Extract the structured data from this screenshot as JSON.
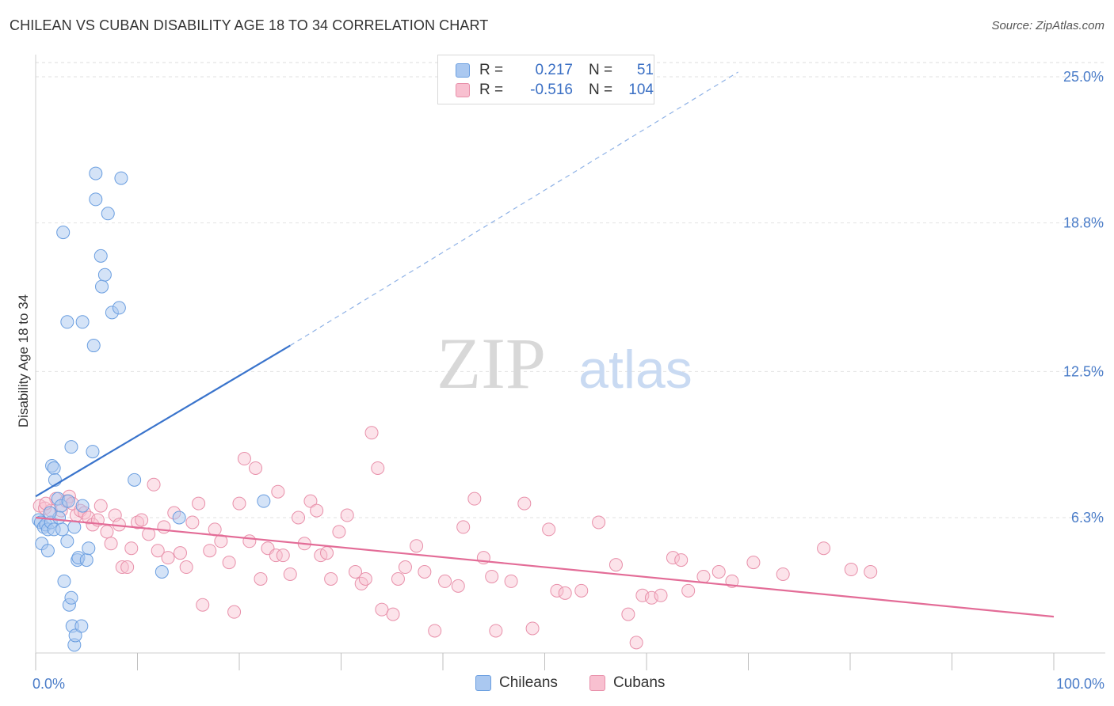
{
  "title": "CHILEAN VS CUBAN DISABILITY AGE 18 TO 34 CORRELATION CHART",
  "source": "Source: ZipAtlas.com",
  "watermark": {
    "zip": "ZIP",
    "atlas": "atlas"
  },
  "legend": {
    "rows": [
      {
        "r_label": "R =",
        "r_value": "0.217",
        "n_label": "N =",
        "n_value": "51",
        "color": "#aac8f0",
        "border": "#6a9ee0"
      },
      {
        "r_label": "R =",
        "r_value": "-0.516",
        "n_label": "N =",
        "n_value": "104",
        "color": "#f8c0d0",
        "border": "#e890aa"
      }
    ]
  },
  "bottom_legend": [
    {
      "label": "Chileans",
      "color": "#aac8f0",
      "border": "#6a9ee0"
    },
    {
      "label": "Cubans",
      "color": "#f8c0d0",
      "border": "#e890aa"
    }
  ],
  "chart_data": {
    "type": "scatter",
    "title": "CHILEAN VS CUBAN DISABILITY AGE 18 TO 34 CORRELATION CHART",
    "xlabel": "",
    "ylabel": "Disability Age 18 to 34",
    "xlim": [
      0,
      100
    ],
    "ylim": [
      0,
      26
    ],
    "x_tick_labels": [
      "0.0%",
      "100.0%"
    ],
    "y_ticks": [
      6.3,
      12.5,
      18.8,
      25.0
    ],
    "y_tick_labels": [
      "6.3%",
      "12.5%",
      "18.8%",
      "25.0%"
    ],
    "grid": true,
    "legend_position": "top-center",
    "series": [
      {
        "name": "Chileans",
        "color": "#6a9ee0",
        "fill": "#aac8f0",
        "trend": {
          "x0": 0,
          "y0": 7.2,
          "x1": 25,
          "y1": 13.6,
          "dash_to_x": 69,
          "dash_to_y": 25.2
        },
        "points": [
          [
            0.3,
            6.2
          ],
          [
            0.5,
            6.1
          ],
          [
            0.8,
            5.9
          ],
          [
            1.0,
            6.0
          ],
          [
            1.2,
            5.8
          ],
          [
            1.5,
            6.1
          ],
          [
            1.8,
            5.8
          ],
          [
            0.6,
            5.2
          ],
          [
            1.2,
            4.9
          ],
          [
            1.6,
            8.5
          ],
          [
            1.8,
            8.4
          ],
          [
            1.9,
            7.9
          ],
          [
            2.2,
            7.1
          ],
          [
            2.5,
            6.8
          ],
          [
            2.6,
            5.8
          ],
          [
            3.2,
            7.0
          ],
          [
            2.8,
            3.6
          ],
          [
            3.1,
            5.3
          ],
          [
            3.3,
            2.6
          ],
          [
            3.5,
            9.3
          ],
          [
            3.5,
            2.9
          ],
          [
            3.6,
            1.7
          ],
          [
            3.8,
            0.9
          ],
          [
            3.9,
            1.3
          ],
          [
            3.8,
            5.9
          ],
          [
            4.1,
            4.5
          ],
          [
            4.2,
            4.6
          ],
          [
            4.5,
            1.7
          ],
          [
            4.6,
            6.8
          ],
          [
            5.0,
            4.5
          ],
          [
            5.2,
            5.0
          ],
          [
            5.6,
            9.1
          ],
          [
            5.7,
            13.6
          ],
          [
            5.9,
            19.8
          ],
          [
            6.4,
            17.4
          ],
          [
            6.5,
            16.1
          ],
          [
            6.8,
            16.6
          ],
          [
            7.1,
            19.2
          ],
          [
            7.5,
            15.0
          ],
          [
            8.2,
            15.2
          ],
          [
            8.4,
            20.7
          ],
          [
            2.7,
            18.4
          ],
          [
            3.1,
            14.6
          ],
          [
            4.6,
            14.6
          ],
          [
            5.9,
            20.9
          ],
          [
            9.7,
            7.9
          ],
          [
            12.4,
            4.0
          ],
          [
            14.1,
            6.3
          ],
          [
            22.4,
            7.0
          ],
          [
            2.3,
            6.3
          ],
          [
            1.4,
            6.5
          ]
        ]
      },
      {
        "name": "Cubans",
        "color": "#e890aa",
        "fill": "#f8c0d0",
        "trend": {
          "x0": 0,
          "y0": 6.3,
          "x1": 100,
          "y1": 2.1
        },
        "points": [
          [
            0.4,
            6.8
          ],
          [
            0.9,
            6.7
          ],
          [
            1.5,
            6.6
          ],
          [
            2.0,
            7.1
          ],
          [
            2.5,
            6.6
          ],
          [
            3.0,
            7.0
          ],
          [
            3.3,
            7.2
          ],
          [
            3.6,
            6.9
          ],
          [
            4.0,
            6.4
          ],
          [
            4.4,
            6.6
          ],
          [
            4.8,
            6.5
          ],
          [
            5.2,
            6.3
          ],
          [
            5.6,
            6.0
          ],
          [
            6.1,
            6.2
          ],
          [
            6.4,
            6.8
          ],
          [
            7.0,
            5.7
          ],
          [
            7.4,
            5.2
          ],
          [
            7.8,
            6.4
          ],
          [
            8.2,
            6.0
          ],
          [
            8.5,
            4.2
          ],
          [
            9.0,
            4.2
          ],
          [
            9.4,
            5.0
          ],
          [
            10.0,
            6.1
          ],
          [
            10.4,
            6.2
          ],
          [
            11.1,
            5.6
          ],
          [
            11.6,
            7.7
          ],
          [
            12.0,
            4.9
          ],
          [
            12.6,
            5.9
          ],
          [
            13.0,
            4.6
          ],
          [
            13.6,
            6.5
          ],
          [
            14.2,
            4.8
          ],
          [
            14.8,
            4.2
          ],
          [
            15.4,
            6.1
          ],
          [
            16.0,
            6.9
          ],
          [
            16.4,
            2.6
          ],
          [
            17.1,
            4.9
          ],
          [
            17.6,
            5.8
          ],
          [
            18.2,
            5.3
          ],
          [
            19.0,
            4.4
          ],
          [
            19.5,
            2.3
          ],
          [
            20.0,
            6.9
          ],
          [
            20.5,
            8.8
          ],
          [
            21.0,
            5.3
          ],
          [
            21.6,
            8.4
          ],
          [
            22.1,
            3.7
          ],
          [
            22.8,
            5.0
          ],
          [
            23.6,
            4.7
          ],
          [
            23.8,
            7.4
          ],
          [
            24.3,
            4.7
          ],
          [
            25.0,
            3.9
          ],
          [
            25.8,
            6.3
          ],
          [
            26.4,
            5.2
          ],
          [
            27.0,
            7.0
          ],
          [
            27.6,
            6.6
          ],
          [
            28.0,
            4.7
          ],
          [
            28.6,
            4.8
          ],
          [
            29.0,
            3.7
          ],
          [
            29.8,
            5.7
          ],
          [
            30.6,
            6.4
          ],
          [
            31.4,
            4.0
          ],
          [
            32.0,
            3.5
          ],
          [
            32.4,
            3.7
          ],
          [
            33.0,
            9.9
          ],
          [
            33.6,
            8.4
          ],
          [
            34.0,
            2.4
          ],
          [
            35.1,
            2.2
          ],
          [
            35.6,
            3.7
          ],
          [
            36.3,
            4.2
          ],
          [
            37.4,
            5.1
          ],
          [
            38.2,
            4.0
          ],
          [
            39.2,
            1.5
          ],
          [
            40.2,
            3.6
          ],
          [
            41.5,
            3.4
          ],
          [
            42.0,
            5.9
          ],
          [
            43.1,
            7.1
          ],
          [
            44.0,
            4.6
          ],
          [
            44.8,
            3.8
          ],
          [
            45.2,
            1.5
          ],
          [
            46.7,
            3.6
          ],
          [
            48.0,
            6.9
          ],
          [
            48.8,
            1.6
          ],
          [
            50.4,
            5.8
          ],
          [
            51.2,
            3.2
          ],
          [
            52.0,
            3.1
          ],
          [
            53.6,
            3.2
          ],
          [
            55.3,
            6.1
          ],
          [
            57.0,
            4.3
          ],
          [
            58.2,
            2.2
          ],
          [
            59.6,
            3.0
          ],
          [
            60.5,
            2.9
          ],
          [
            61.4,
            3.0
          ],
          [
            62.6,
            4.6
          ],
          [
            63.4,
            4.5
          ],
          [
            64.1,
            3.2
          ],
          [
            65.6,
            3.8
          ],
          [
            67.1,
            4.0
          ],
          [
            68.4,
            3.6
          ],
          [
            70.5,
            4.4
          ],
          [
            73.4,
            3.9
          ],
          [
            77.4,
            5.0
          ],
          [
            80.1,
            4.1
          ],
          [
            82.0,
            4.0
          ],
          [
            59.0,
            1.0
          ],
          [
            1.0,
            6.9
          ]
        ]
      }
    ]
  }
}
